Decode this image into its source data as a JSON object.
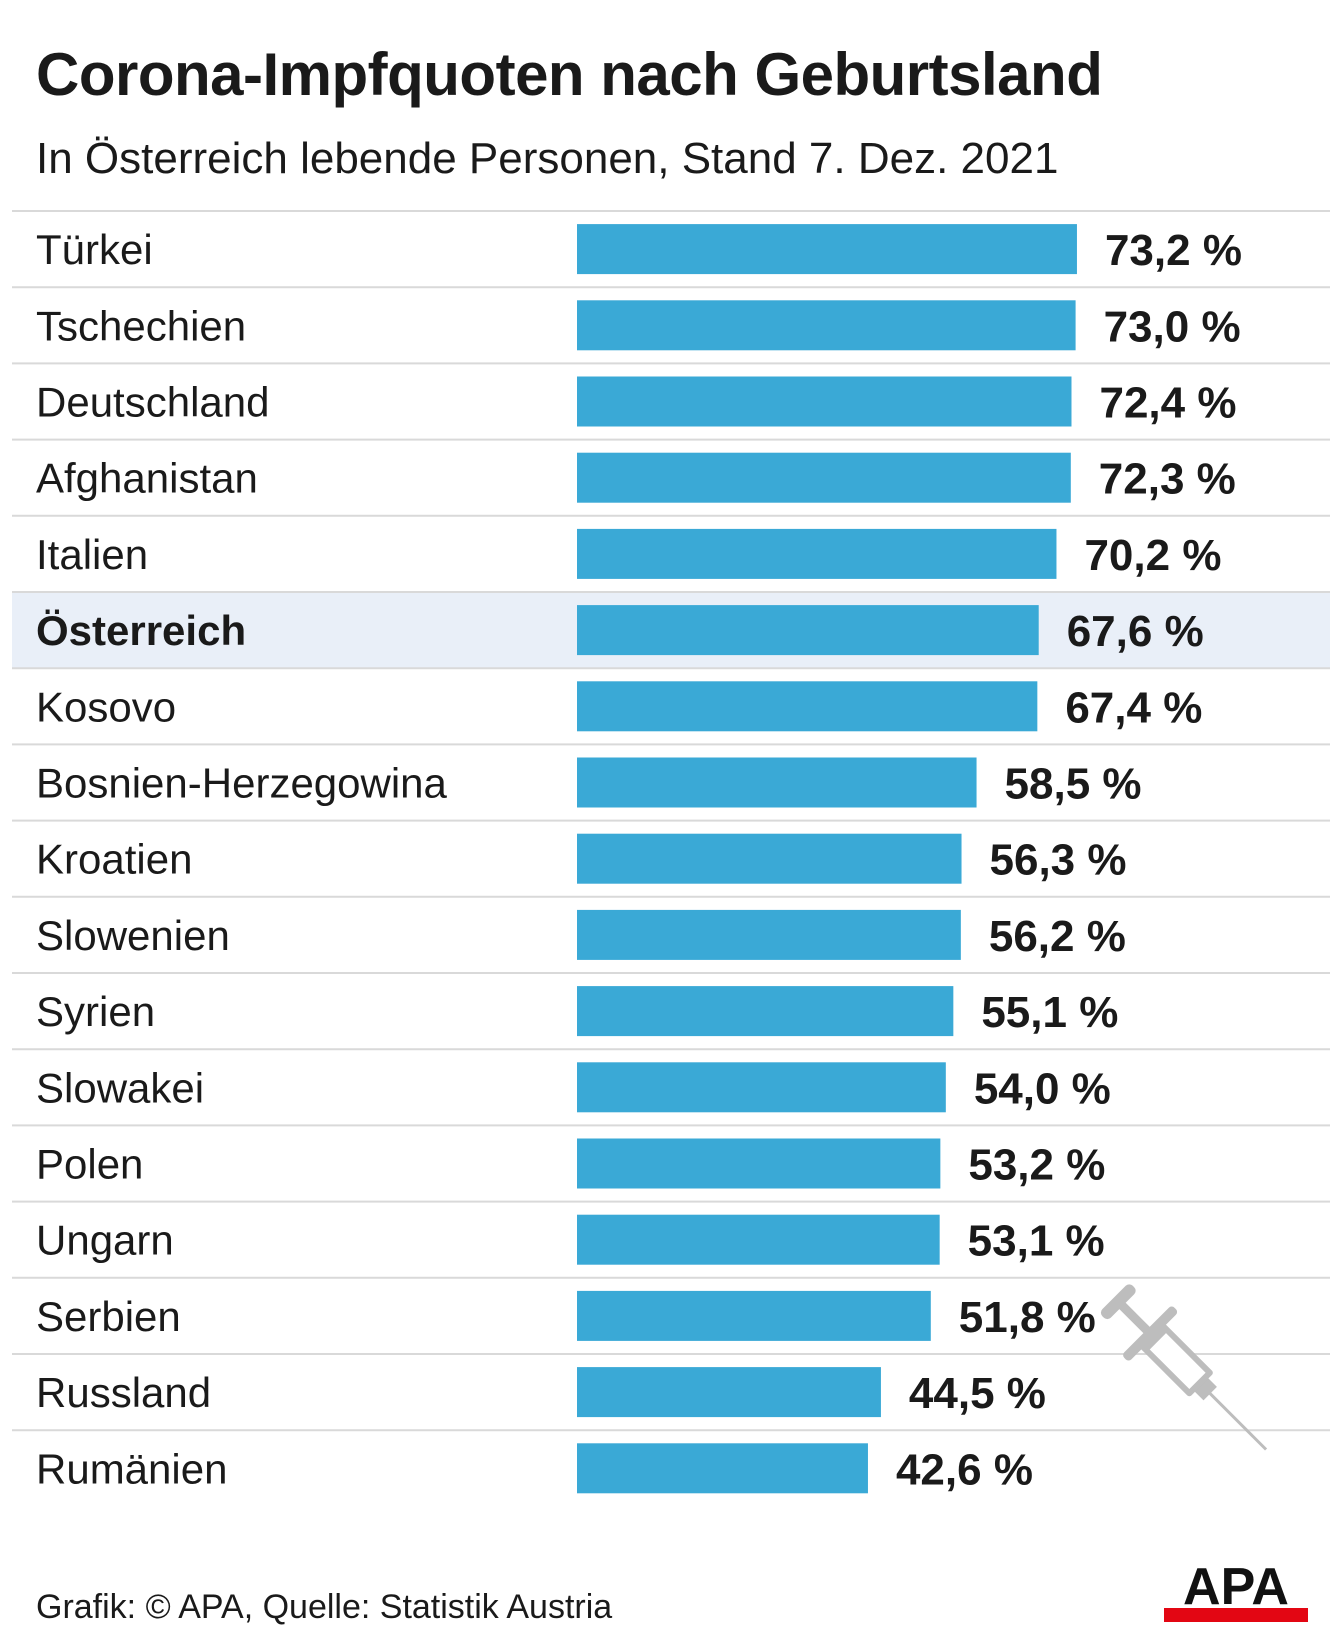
{
  "title": "Corona-Impfquoten nach Geburtsland",
  "subtitle": "In Österreich lebende Personen, Stand 7. Dez. 2021",
  "source": "Grafik: © APA, Quelle: Statistik Austria",
  "logo_text": "APA",
  "colors": {
    "bar": "#3aa9d6",
    "highlight_row": "#e9eff8",
    "divider": "#d9d9d9",
    "logo_red": "#e30613"
  },
  "icons": {
    "decoration": "syringe-icon"
  },
  "chart_data": {
    "type": "bar",
    "orientation": "horizontal",
    "title": "Corona-Impfquoten nach Geburtsland",
    "subtitle": "In Österreich lebende Personen, Stand 7. Dez. 2021",
    "highlight": "Österreich",
    "xlim": [
      0,
      100
    ],
    "categories": [
      "Türkei",
      "Tschechien",
      "Deutschland",
      "Afghanistan",
      "Italien",
      "Österreich",
      "Kosovo",
      "Bosnien-Herzegowina",
      "Kroatien",
      "Slowenien",
      "Syrien",
      "Slowakei",
      "Polen",
      "Ungarn",
      "Serbien",
      "Russland",
      "Rumänien"
    ],
    "values": [
      73.2,
      73.0,
      72.4,
      72.3,
      70.2,
      67.6,
      67.4,
      58.5,
      56.3,
      56.2,
      55.1,
      54.0,
      53.2,
      53.1,
      51.8,
      44.5,
      42.6
    ],
    "value_labels": [
      "73,2 %",
      "73,0 %",
      "72,4 %",
      "72,3 %",
      "70,2 %",
      "67,6 %",
      "67,4 %",
      "58,5 %",
      "56,3 %",
      "56,2 %",
      "55,1 %",
      "54,0 %",
      "53,2 %",
      "53,1 %",
      "51,8 %",
      "44,5 %",
      "42,6 %"
    ]
  }
}
